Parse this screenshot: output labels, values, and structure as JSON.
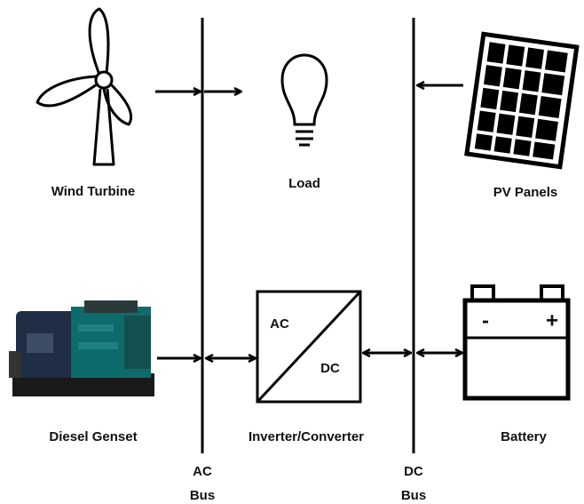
{
  "nodes": [
    {
      "label": "Wind Turbine"
    },
    {
      "label": "Load"
    },
    {
      "label": "PV Panels"
    },
    {
      "label": "Diesel Genset"
    },
    {
      "label": "Inverter/Converter",
      "ports": [
        "AC",
        "DC"
      ]
    },
    {
      "label": "Battery",
      "terminals": [
        "-",
        "+"
      ]
    }
  ],
  "buses": [
    {
      "lines": [
        "AC",
        "Bus"
      ]
    },
    {
      "lines": [
        "DC",
        "Bus"
      ]
    }
  ]
}
